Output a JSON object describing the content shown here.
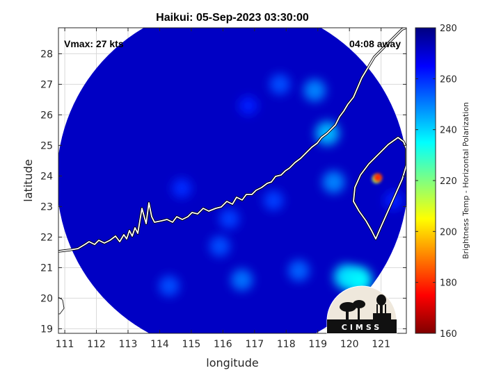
{
  "chart_data": {
    "type": "heatmap",
    "title": "Haikui: 05-Sep-2023 03:30:00",
    "xlabel": "longitude",
    "ylabel": "latitude",
    "xlim": [
      110.8,
      121.8
    ],
    "ylim": [
      18.85,
      28.85
    ],
    "xticks": [
      "111",
      "112",
      "113",
      "114",
      "115",
      "116",
      "117",
      "118",
      "119",
      "120",
      "121"
    ],
    "yticks": [
      "19",
      "20",
      "21",
      "22",
      "23",
      "24",
      "25",
      "26",
      "27",
      "28"
    ],
    "grid": true,
    "colorbar": {
      "label": "Brightness Temp - Horizontal Polarization",
      "range": [
        160,
        280
      ],
      "ticks": [
        "160",
        "180",
        "200",
        "220",
        "240",
        "260",
        "280"
      ],
      "colormap": "jet"
    },
    "annotations": {
      "vmax": "Vmax: 27 kts",
      "time_away": "04:08 away"
    },
    "swath": {
      "center": [
        116.3,
        23.9
      ],
      "radius_deg": 5.55,
      "background_value": 272,
      "features": [
        {
          "lon": 116.8,
          "lat": 26.3,
          "value": 262
        },
        {
          "lon": 117.8,
          "lat": 27.0,
          "value": 256
        },
        {
          "lon": 118.9,
          "lat": 26.8,
          "value": 250
        },
        {
          "lon": 119.3,
          "lat": 25.4,
          "value": 244
        },
        {
          "lon": 117.6,
          "lat": 23.2,
          "value": 258
        },
        {
          "lon": 116.2,
          "lat": 22.6,
          "value": 258
        },
        {
          "lon": 114.7,
          "lat": 23.6,
          "value": 260
        },
        {
          "lon": 115.9,
          "lat": 21.7,
          "value": 256
        },
        {
          "lon": 116.6,
          "lat": 20.6,
          "value": 252
        },
        {
          "lon": 118.4,
          "lat": 20.9,
          "value": 254
        },
        {
          "lon": 114.3,
          "lat": 20.4,
          "value": 256
        },
        {
          "lon": 119.9,
          "lat": 20.7,
          "value": 240
        },
        {
          "lon": 120.3,
          "lat": 20.6,
          "value": 236
        },
        {
          "lon": 119.5,
          "lat": 23.8,
          "value": 250
        },
        {
          "lon": 121.4,
          "lat": 23.2,
          "value": 262
        },
        {
          "lon": 120.85,
          "lat": 23.9,
          "value": 215
        },
        {
          "lon": 120.9,
          "lat": 23.95,
          "value": 180
        }
      ]
    }
  },
  "logo": {
    "text": "CIMSS"
  },
  "colors": {
    "coastline": "#ffffff",
    "axes": "#262626",
    "grid": "#d9d9d9"
  }
}
